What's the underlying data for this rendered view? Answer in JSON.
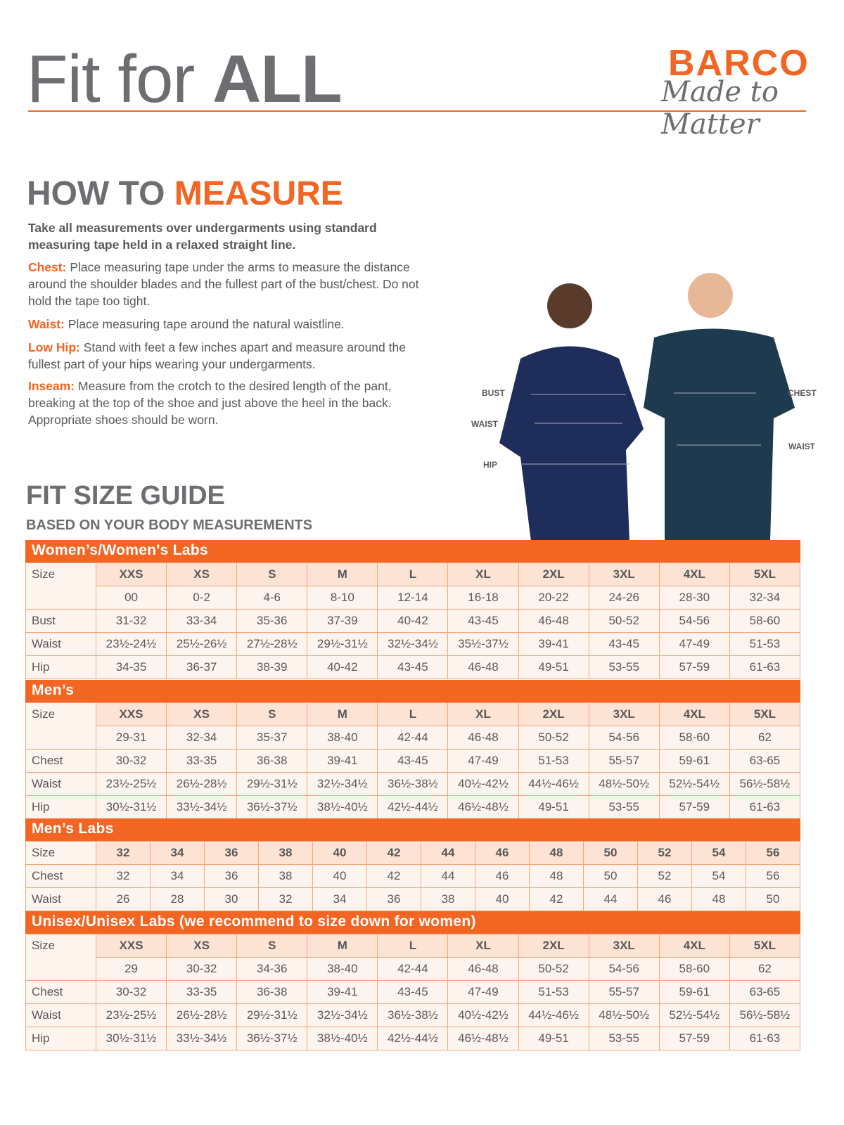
{
  "header": {
    "title_light": "Fit for ",
    "title_bold": "ALL",
    "brand": "BARCO",
    "tagline": "Made to Matter",
    "brand_color": "#F26522"
  },
  "measure": {
    "heading_a": "HOW TO ",
    "heading_b": "MEASURE",
    "intro": "Take all measurements over undergarments using standard measuring tape held in a relaxed straight line.",
    "items": [
      {
        "key": "Chest:",
        "text": "Place measuring tape under the arms to measure the distance around the shoulder blades and the fullest part of the bust/chest. Do not hold the tape too tight."
      },
      {
        "key": "Waist:",
        "text": "Place measuring tape around the natural waistline."
      },
      {
        "key": "Low Hip:",
        "text": "Stand with feet a few inches apart and measure around the fullest part of your hips wearing your undergarments."
      },
      {
        "key": "Inseam:",
        "text": "Measure from the crotch to the desired length of the pant, breaking at the top of the shoe and just above the heel in the back. Appropriate shoes should be worn."
      }
    ]
  },
  "image_labels": {
    "bust": "BUST",
    "waist_w": "WAIST",
    "hip": "HIP",
    "chest": "CHEST",
    "waist_m": "WAIST"
  },
  "guide": {
    "title": "FIT SIZE GUIDE",
    "subtitle": "BASED ON YOUR BODY MEASUREMENTS"
  },
  "tables": [
    {
      "title": "Women’s/Women's Labs",
      "rows": [
        [
          "Size",
          "XXS",
          "XS",
          "S",
          "M",
          "L",
          "XL",
          "2XL",
          "3XL",
          "4XL",
          "5XL"
        ],
        [
          "",
          "00",
          "0-2",
          "4-6",
          "8-10",
          "12-14",
          "16-18",
          "20-22",
          "24-26",
          "28-30",
          "32-34"
        ],
        [
          "Bust",
          "31-32",
          "33-34",
          "35-36",
          "37-39",
          "40-42",
          "43-45",
          "46-48",
          "50-52",
          "54-56",
          "58-60"
        ],
        [
          "Waist",
          "23½-24½",
          "25½-26½",
          "27½-28½",
          "29½-31½",
          "32½-34½",
          "35½-37½",
          "39-41",
          "43-45",
          "47-49",
          "51-53"
        ],
        [
          "Hip",
          "34-35",
          "36-37",
          "38-39",
          "40-42",
          "43-45",
          "46-48",
          "49-51",
          "53-55",
          "57-59",
          "61-63"
        ]
      ]
    },
    {
      "title": "Men’s",
      "rows": [
        [
          "Size",
          "XXS",
          "XS",
          "S",
          "M",
          "L",
          "XL",
          "2XL",
          "3XL",
          "4XL",
          "5XL"
        ],
        [
          "",
          "29-31",
          "32-34",
          "35-37",
          "38-40",
          "42-44",
          "46-48",
          "50-52",
          "54-56",
          "58-60",
          "62"
        ],
        [
          "Chest",
          "30-32",
          "33-35",
          "36-38",
          "39-41",
          "43-45",
          "47-49",
          "51-53",
          "55-57",
          "59-61",
          "63-65"
        ],
        [
          "Waist",
          "23½-25½",
          "26½-28½",
          "29½-31½",
          "32½-34½",
          "36½-38½",
          "40½-42½",
          "44½-46½",
          "48½-50½",
          "52½-54½",
          "56½-58½"
        ],
        [
          "Hip",
          "30½-31½",
          "33½-34½",
          "36½-37½",
          "38½-40½",
          "42½-44½",
          "46½-48½",
          "49-51",
          "53-55",
          "57-59",
          "61-63"
        ]
      ]
    },
    {
      "title": "Men’s Labs",
      "rows": [
        [
          "Size",
          "32",
          "34",
          "36",
          "38",
          "40",
          "42",
          "44",
          "46",
          "48",
          "50",
          "52",
          "54",
          "56"
        ],
        [
          "Chest",
          "32",
          "34",
          "36",
          "38",
          "40",
          "42",
          "44",
          "46",
          "48",
          "50",
          "52",
          "54",
          "56"
        ],
        [
          "Waist",
          "26",
          "28",
          "30",
          "32",
          "34",
          "36",
          "38",
          "40",
          "42",
          "44",
          "46",
          "48",
          "50"
        ]
      ]
    },
    {
      "title": "Unisex/Unisex Labs (we recommend to size down for women)",
      "rows": [
        [
          "Size",
          "XXS",
          "XS",
          "S",
          "M",
          "L",
          "XL",
          "2XL",
          "3XL",
          "4XL",
          "5XL"
        ],
        [
          "",
          "29",
          "30-32",
          "34-36",
          "38-40",
          "42-44",
          "46-48",
          "50-52",
          "54-56",
          "58-60",
          "62"
        ],
        [
          "Chest",
          "30-32",
          "33-35",
          "36-38",
          "39-41",
          "43-45",
          "47-49",
          "51-53",
          "55-57",
          "59-61",
          "63-65"
        ],
        [
          "Waist",
          "23½-25½",
          "26½-28½",
          "29½-31½",
          "32½-34½",
          "36½-38½",
          "40½-42½",
          "44½-46½",
          "48½-50½",
          "52½-54½",
          "56½-58½"
        ],
        [
          "Hip",
          "30½-31½",
          "33½-34½",
          "36½-37½",
          "38½-40½",
          "42½-44½",
          "46½-48½",
          "49-51",
          "53-55",
          "57-59",
          "61-63"
        ]
      ]
    }
  ]
}
